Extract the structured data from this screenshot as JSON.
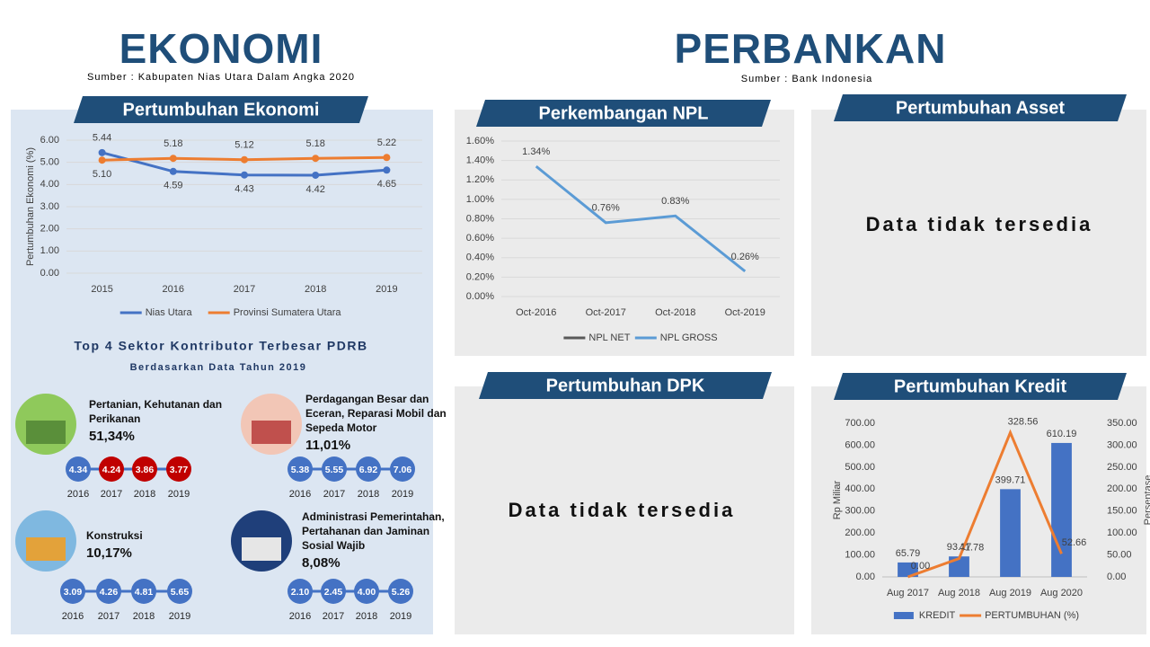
{
  "header": {
    "left_title": "EKONOMI",
    "left_source": "Sumber : Kabupaten Nias Utara Dalam Angka 2020",
    "right_title": "PERBANKAN",
    "right_source": "Sumber : Bank Indonesia"
  },
  "chart_data": [
    {
      "type": "line",
      "title": "Pertumbuhan Ekonomi",
      "ylabel": "Pertumbuhan Ekonomi (%)",
      "categories": [
        "2015",
        "2016",
        "2017",
        "2018",
        "2019"
      ],
      "series": [
        {
          "name": "Nias Utara",
          "color": "#4472c4",
          "values": [
            5.44,
            4.59,
            4.43,
            4.42,
            4.65
          ],
          "value_labels": [
            "5.44",
            "4.59",
            "4.43",
            "4.42",
            "4.65"
          ]
        },
        {
          "name": "Provinsi Sumatera Utara",
          "color": "#ed7d31",
          "values": [
            5.1,
            5.18,
            5.12,
            5.18,
            5.22
          ],
          "value_labels": [
            "5.10",
            "5.18",
            "5.12",
            "5.18",
            "5.22"
          ]
        }
      ],
      "ylim": [
        0,
        6
      ],
      "yticks": [
        {
          "value": 0,
          "label": "0.00"
        },
        {
          "value": 1,
          "label": "1.00"
        },
        {
          "value": 2,
          "label": "2.00"
        },
        {
          "value": 3,
          "label": "3.00"
        },
        {
          "value": 4,
          "label": "4.00"
        },
        {
          "value": 5,
          "label": "5.00"
        },
        {
          "value": 6,
          "label": "6.00"
        }
      ],
      "grid": true,
      "markers": true,
      "legend": "bottom"
    },
    {
      "type": "line",
      "title": "Perkembangan NPL",
      "categories": [
        "Oct-2016",
        "Oct-2017",
        "Oct-2018",
        "Oct-2019"
      ],
      "series": [
        {
          "name": "NPL NET",
          "color": "#595959",
          "values": [
            null,
            null,
            null,
            null
          ]
        },
        {
          "name": "NPL GROSS",
          "color": "#5b9bd5",
          "values": [
            1.34,
            0.76,
            0.83,
            0.26
          ],
          "value_labels": [
            "1.34%",
            "0.76%",
            "0.83%",
            "0.26%"
          ]
        }
      ],
      "ylim": [
        0,
        1.6
      ],
      "yticks": [
        {
          "value": 0,
          "label": "0.00%"
        },
        {
          "value": 0.2,
          "label": "0.20%"
        },
        {
          "value": 0.4,
          "label": "0.40%"
        },
        {
          "value": 0.6,
          "label": "0.60%"
        },
        {
          "value": 0.8,
          "label": "0.80%"
        },
        {
          "value": 1.0,
          "label": "1.00%"
        },
        {
          "value": 1.2,
          "label": "1.20%"
        },
        {
          "value": 1.4,
          "label": "1.40%"
        },
        {
          "value": 1.6,
          "label": "1.60%"
        }
      ],
      "grid": true,
      "markers": false,
      "legend": "bottom"
    },
    {
      "type": "bar",
      "title": "Pertumbuhan Kredit",
      "ylabel": "Rp Miliar",
      "y2label": "Persentase",
      "categories": [
        "Aug 2017",
        "Aug 2018",
        "Aug 2019",
        "Aug 2020"
      ],
      "series": [
        {
          "name": "KREDIT",
          "color": "#4472c4",
          "values": [
            65.79,
            93.27,
            399.71,
            610.19
          ]
        },
        {
          "name": "PERTUMBUHAN (%)",
          "color": "#ed7d31",
          "type": "line",
          "axis": "y2",
          "values": [
            0,
            41.78,
            328.56,
            52.66
          ],
          "value_labels": [
            "0.00",
            "41.78",
            "328.56",
            "52.66"
          ]
        }
      ],
      "ylim": [
        0,
        700
      ],
      "yticks": [
        {
          "value": 0,
          "label": "0.00"
        },
        {
          "value": 100,
          "label": "100.00"
        },
        {
          "value": 200,
          "label": "200.00"
        },
        {
          "value": 300,
          "label": "300.00"
        },
        {
          "value": 400,
          "label": "400.00"
        },
        {
          "value": 500,
          "label": "500.00"
        },
        {
          "value": 600,
          "label": "600.00"
        },
        {
          "value": 700,
          "label": "700.00"
        }
      ],
      "y2lim": [
        0,
        350
      ],
      "y2ticks": [
        {
          "value": 0,
          "label": "0.00"
        },
        {
          "value": 50,
          "label": "50.00"
        },
        {
          "value": 100,
          "label": "100.00"
        },
        {
          "value": 150,
          "label": "150.00"
        },
        {
          "value": 200,
          "label": "200.00"
        },
        {
          "value": 250,
          "label": "250.00"
        },
        {
          "value": 300,
          "label": "300.00"
        },
        {
          "value": 350,
          "label": "350.00"
        }
      ],
      "grid": false,
      "markers": false,
      "legend": "bottom"
    }
  ],
  "panels": {
    "asset": {
      "title": "Pertumbuhan Asset",
      "message": "Data tidak tersedia"
    },
    "dpk": {
      "title": "Pertumbuhan DPK",
      "message": "Data tidak tersedia"
    }
  },
  "sectors": {
    "title": "Top 4 Sektor Kontributor Terbesar PDRB",
    "subtitle": "Berdasarkan Data Tahun 2019",
    "items": [
      {
        "name": "Pertanian, Kehutanan dan Perikanan",
        "share": "51,34%",
        "years": [
          "2016",
          "2017",
          "2018",
          "2019"
        ],
        "values": [
          "4.34",
          "4.24",
          "3.86",
          "3.77"
        ],
        "colors": [
          "#4472c4",
          "#c00000",
          "#c00000",
          "#c00000"
        ]
      },
      {
        "name": "Perdagangan Besar dan Eceran, Reparasi Mobil dan Sepeda Motor",
        "share": "11,01%",
        "years": [
          "2016",
          "2017",
          "2018",
          "2019"
        ],
        "values": [
          "5.38",
          "5.55",
          "6.92",
          "7.06"
        ],
        "colors": [
          "#4472c4",
          "#4472c4",
          "#4472c4",
          "#4472c4"
        ]
      },
      {
        "name": "Konstruksi",
        "share": "10,17%",
        "years": [
          "2016",
          "2017",
          "2018",
          "2019"
        ],
        "values": [
          "3.09",
          "4.26",
          "4.81",
          "5.65"
        ],
        "colors": [
          "#4472c4",
          "#4472c4",
          "#4472c4",
          "#4472c4"
        ]
      },
      {
        "name": "Administrasi Pemerintahan, Pertahanan dan Jaminan Sosial Wajib",
        "share": "8,08%",
        "years": [
          "2016",
          "2017",
          "2018",
          "2019"
        ],
        "values": [
          "2.10",
          "2.45",
          "4.00",
          "5.26"
        ],
        "colors": [
          "#4472c4",
          "#4472c4",
          "#4472c4",
          "#4472c4"
        ]
      }
    ]
  }
}
